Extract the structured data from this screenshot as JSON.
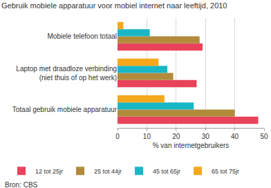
{
  "chart_data": {
    "type": "bar",
    "orientation": "horizontal",
    "title": "Gebruik mobiele apparatuur voor mobiel internet naar leeftijd, 2010",
    "xlabel": "% van internetgebruikers",
    "annotations": [
      "Bron: CBS"
    ],
    "categories": [
      "Mobiele telefoon totaal",
      "Laptop met draadloze verbinding\n(niet thuis of op het werk)",
      "Totaal gebruik mobiele apparatuur"
    ],
    "series": [
      {
        "name": "12 tot 25jr",
        "color": "#e8435a",
        "values": [
          29,
          27,
          48
        ]
      },
      {
        "name": "25 tot 44jr",
        "color": "#b28a3c",
        "values": [
          28,
          19,
          40
        ]
      },
      {
        "name": "45 tot 65jr",
        "color": "#19b7c6",
        "values": [
          11,
          17,
          26
        ]
      },
      {
        "name": "65 tot 75jr",
        "color": "#f5a81c",
        "values": [
          2,
          14,
          16
        ]
      }
    ],
    "xlim": [
      0,
      50
    ],
    "xticks": [
      0,
      10,
      20,
      30,
      40,
      50
    ],
    "grid": true,
    "legend": "bottom"
  }
}
